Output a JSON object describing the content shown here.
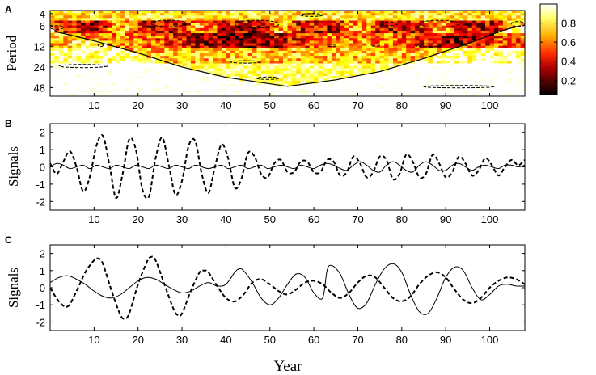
{
  "panel_labels": {
    "a": "A",
    "b": "B",
    "c": "C"
  },
  "xlabel": "Year",
  "chart_data": [
    {
      "panel": "A",
      "type": "heatmap",
      "ylabel": "Period",
      "xlim": [
        0,
        108
      ],
      "y_scale": "log2",
      "yticks": [
        4,
        6,
        12,
        24,
        48
      ],
      "ytick_labels": [
        "4",
        "6",
        "12",
        "24",
        "48"
      ],
      "xticks": [
        10,
        20,
        30,
        40,
        50,
        60,
        70,
        80,
        90,
        100
      ],
      "xtick_labels": [
        "10",
        "20",
        "30",
        "40",
        "50",
        "60",
        "70",
        "80",
        "90",
        "100"
      ],
      "colorbar": {
        "range": [
          0.05,
          1.0
        ],
        "ticks": [
          0.2,
          0.4,
          0.6,
          0.8
        ],
        "tick_labels": [
          "0.2",
          "0.4",
          "0.6",
          "0.8"
        ],
        "colormap": "hot"
      },
      "cone_of_influence": [
        [
          1,
          7
        ],
        [
          2,
          7.5
        ],
        [
          10,
          10
        ],
        [
          20,
          15
        ],
        [
          30,
          24
        ],
        [
          40,
          34
        ],
        [
          54,
          46
        ],
        [
          65,
          37
        ],
        [
          75,
          28
        ],
        [
          85,
          18
        ],
        [
          95,
          11
        ],
        [
          103,
          7
        ],
        [
          107,
          6
        ]
      ],
      "significant_regions": [
        {
          "x0": 23,
          "x1": 31,
          "p0": 5.0,
          "p1": 6.2
        },
        {
          "x0": 42,
          "x1": 52,
          "p0": 5.0,
          "p1": 6.5
        },
        {
          "x0": 75,
          "x1": 79,
          "p0": 5.3,
          "p1": 6.0
        },
        {
          "x0": 84,
          "x1": 93,
          "p0": 5.0,
          "p1": 6.3
        },
        {
          "x0": 57,
          "x1": 62,
          "p0": 4.0,
          "p1": 4.4
        },
        {
          "x0": 105,
          "x1": 108,
          "p0": 5.2,
          "p1": 6.2
        },
        {
          "x0": 0,
          "x1": 3,
          "p0": 6.0,
          "p1": 6.8
        },
        {
          "x0": 11,
          "x1": 12,
          "p0": 11.2,
          "p1": 12.0
        },
        {
          "x0": 63,
          "x1": 65,
          "p0": 11.3,
          "p1": 12.0
        },
        {
          "x0": 73,
          "x1": 75,
          "p0": 11.0,
          "p1": 12.0
        },
        {
          "x0": 83,
          "x1": 89,
          "p0": 11.0,
          "p1": 12.2
        },
        {
          "x0": 41,
          "x1": 48,
          "p0": 19.5,
          "p1": 21.0
        },
        {
          "x0": 2,
          "x1": 13,
          "p0": 22.0,
          "p1": 24.5
        },
        {
          "x0": 47,
          "x1": 52,
          "p0": 34.0,
          "p1": 36.0
        },
        {
          "x0": 85,
          "x1": 101,
          "p0": 45.0,
          "p1": 48.0
        }
      ]
    },
    {
      "panel": "B",
      "type": "line",
      "ylabel": "Signals",
      "xlim": [
        0,
        108
      ],
      "ylim": [
        -2.5,
        2.5
      ],
      "yticks": [
        -2,
        -1,
        0,
        1,
        2
      ],
      "ytick_labels": [
        "-2",
        "-1",
        "0",
        "1",
        "2"
      ],
      "xticks": [
        10,
        20,
        30,
        40,
        50,
        60,
        70,
        80,
        90,
        100
      ],
      "xtick_labels": [
        "10",
        "20",
        "30",
        "40",
        "50",
        "60",
        "70",
        "80",
        "90",
        "100"
      ],
      "series": [
        {
          "style": "dashed",
          "x": [
            0,
            1.5,
            3,
            4.5,
            6,
            7.5,
            9,
            10.5,
            12,
            13.5,
            15,
            16.5,
            18,
            19.5,
            21,
            22.5,
            24,
            25.5,
            27,
            28.5,
            30,
            31.5,
            33,
            34.5,
            36,
            37.5,
            39,
            40.5,
            42,
            43.5,
            45,
            46.5,
            48,
            49.5,
            51,
            52.5,
            54,
            55.5,
            57,
            58.5,
            60,
            61.5,
            63,
            64.5,
            66,
            67.5,
            69,
            70.5,
            72,
            73.5,
            75,
            76.5,
            78,
            79.5,
            81,
            82.5,
            84,
            85.5,
            87,
            88.5,
            90,
            91.5,
            93,
            94.5,
            96,
            97.5,
            99,
            100.5,
            102,
            103.5,
            105,
            106.5,
            108
          ],
          "y": [
            0.2,
            -0.4,
            0.3,
            0.9,
            0.0,
            -1.4,
            -0.6,
            1.2,
            1.8,
            0.1,
            -1.8,
            -0.4,
            1.6,
            1.0,
            -1.3,
            -1.7,
            0.5,
            1.7,
            0.1,
            -1.6,
            -0.8,
            1.2,
            1.5,
            -0.4,
            -1.5,
            0.0,
            1.3,
            0.5,
            -1.2,
            -0.7,
            0.8,
            0.6,
            -0.4,
            -0.6,
            0.2,
            0.4,
            -0.3,
            -0.3,
            0.3,
            0.3,
            -0.3,
            -0.3,
            0.4,
            0.3,
            -0.5,
            -0.3,
            0.6,
            0.2,
            -0.6,
            -0.3,
            0.6,
            0.4,
            -0.7,
            -0.4,
            0.7,
            0.3,
            -0.6,
            -0.4,
            0.7,
            0.2,
            -0.6,
            -0.3,
            0.6,
            0.2,
            -0.5,
            -0.2,
            0.5,
            0.1,
            -0.5,
            0.0,
            0.4,
            0.1,
            0.4
          ]
        },
        {
          "style": "solid",
          "x": [
            0,
            1.5,
            3,
            4.5,
            6,
            7.5,
            9,
            10.5,
            12,
            13.5,
            15,
            16.5,
            18,
            19.5,
            21,
            22.5,
            24,
            25.5,
            27,
            28.5,
            30,
            31.5,
            33,
            34.5,
            36,
            37.5,
            39,
            40.5,
            42,
            43.5,
            45,
            46.5,
            48,
            49.5,
            51,
            52.5,
            54,
            55.5,
            57,
            58.5,
            60,
            61.5,
            63,
            64.5,
            66,
            67.5,
            69,
            70.5,
            72,
            73.5,
            75,
            76.5,
            78,
            79.5,
            81,
            82.5,
            84,
            85.5,
            87,
            88.5,
            90,
            91.5,
            93,
            94.5,
            96,
            97.5,
            99,
            100.5,
            102,
            103.5,
            105,
            106.5,
            108
          ],
          "y": [
            0.0,
            0.2,
            0.1,
            -0.1,
            0.0,
            0.1,
            -0.1,
            0.1,
            0.0,
            -0.1,
            0.1,
            0.0,
            -0.1,
            0.1,
            0.0,
            -0.1,
            0.1,
            0.0,
            -0.1,
            0.1,
            0.0,
            -0.1,
            0.1,
            0.0,
            -0.1,
            0.0,
            0.1,
            -0.1,
            0.0,
            0.1,
            -0.1,
            0.0,
            0.1,
            -0.1,
            0.0,
            0.1,
            0.0,
            -0.1,
            0.1,
            0.0,
            -0.1,
            0.1,
            0.2,
            0.1,
            -0.1,
            -0.2,
            0.1,
            0.3,
            0.1,
            -0.2,
            -0.3,
            0.1,
            0.3,
            0.1,
            -0.2,
            -0.3,
            0.1,
            0.3,
            0.1,
            -0.2,
            -0.2,
            0.1,
            0.2,
            0.0,
            -0.2,
            0.0,
            0.1,
            0.0,
            -0.1,
            0.1,
            0.1,
            0.0,
            0.1
          ]
        }
      ]
    },
    {
      "panel": "C",
      "type": "line",
      "ylabel": "Signals",
      "xlim": [
        0,
        108
      ],
      "ylim": [
        -2.5,
        2.5
      ],
      "yticks": [
        -2,
        -1,
        0,
        1,
        2
      ],
      "ytick_labels": [
        "-2",
        "-1",
        "0",
        "1",
        "2"
      ],
      "xticks": [
        10,
        20,
        30,
        40,
        50,
        60,
        70,
        80,
        90,
        100
      ],
      "xtick_labels": [
        "10",
        "20",
        "30",
        "40",
        "50",
        "60",
        "70",
        "80",
        "90",
        "100"
      ],
      "series": [
        {
          "style": "dashed",
          "x": [
            0,
            2,
            4,
            6,
            8,
            10,
            11,
            12,
            14,
            16,
            17,
            18,
            20,
            22,
            23,
            24,
            26,
            28,
            29,
            30,
            32,
            34,
            35,
            36,
            38,
            40,
            42,
            44,
            46,
            48,
            50,
            52,
            54,
            56,
            58,
            60,
            62,
            64,
            66,
            68,
            70,
            72,
            74,
            76,
            78,
            80,
            82,
            84,
            86,
            88,
            90,
            92,
            94,
            96,
            98,
            100,
            102,
            104,
            106,
            108
          ],
          "y": [
            0.0,
            -0.8,
            -1.1,
            -0.2,
            0.9,
            1.6,
            1.7,
            1.4,
            -0.2,
            -1.6,
            -1.8,
            -1.5,
            0.2,
            1.5,
            1.8,
            1.6,
            0.2,
            -1.2,
            -1.6,
            -1.5,
            -0.2,
            0.9,
            1.0,
            0.9,
            0.1,
            -0.6,
            -0.8,
            -0.4,
            0.3,
            0.5,
            0.2,
            -0.2,
            -0.4,
            -0.1,
            0.3,
            0.4,
            0.2,
            -0.3,
            -0.6,
            -0.3,
            0.3,
            0.7,
            0.6,
            0.0,
            -0.6,
            -0.8,
            -0.5,
            0.2,
            0.7,
            0.9,
            0.6,
            -0.1,
            -0.7,
            -0.9,
            -0.6,
            0.0,
            0.4,
            0.6,
            0.5,
            0.2
          ]
        },
        {
          "style": "solid",
          "x": [
            0,
            2,
            4,
            6,
            8,
            10,
            12,
            14,
            16,
            18,
            20,
            22,
            24,
            26,
            28,
            30,
            32,
            34,
            36,
            38,
            40,
            42,
            43,
            44,
            46,
            48,
            50,
            52,
            54,
            56,
            58,
            60,
            62,
            63,
            64,
            66,
            68,
            70,
            72,
            74,
            76,
            78,
            80,
            82,
            84,
            86,
            88,
            90,
            92,
            94,
            96,
            98,
            100,
            102,
            104,
            106,
            108
          ],
          "y": [
            0.3,
            0.6,
            0.7,
            0.5,
            0.2,
            -0.2,
            -0.5,
            -0.6,
            -0.4,
            0.0,
            0.4,
            0.6,
            0.5,
            0.2,
            -0.1,
            -0.3,
            -0.2,
            0.1,
            0.3,
            0.1,
            0.2,
            0.9,
            1.1,
            1.0,
            0.3,
            -0.6,
            -1.0,
            -0.6,
            0.2,
            0.8,
            0.6,
            -0.3,
            -0.6,
            1.0,
            1.3,
            0.8,
            -0.4,
            -1.2,
            -0.9,
            0.2,
            1.1,
            1.4,
            0.9,
            -0.4,
            -1.4,
            -1.5,
            -0.6,
            0.6,
            1.2,
            1.0,
            0.0,
            -0.7,
            -0.4,
            0.1,
            0.2,
            0.1,
            0.1
          ]
        }
      ]
    }
  ]
}
